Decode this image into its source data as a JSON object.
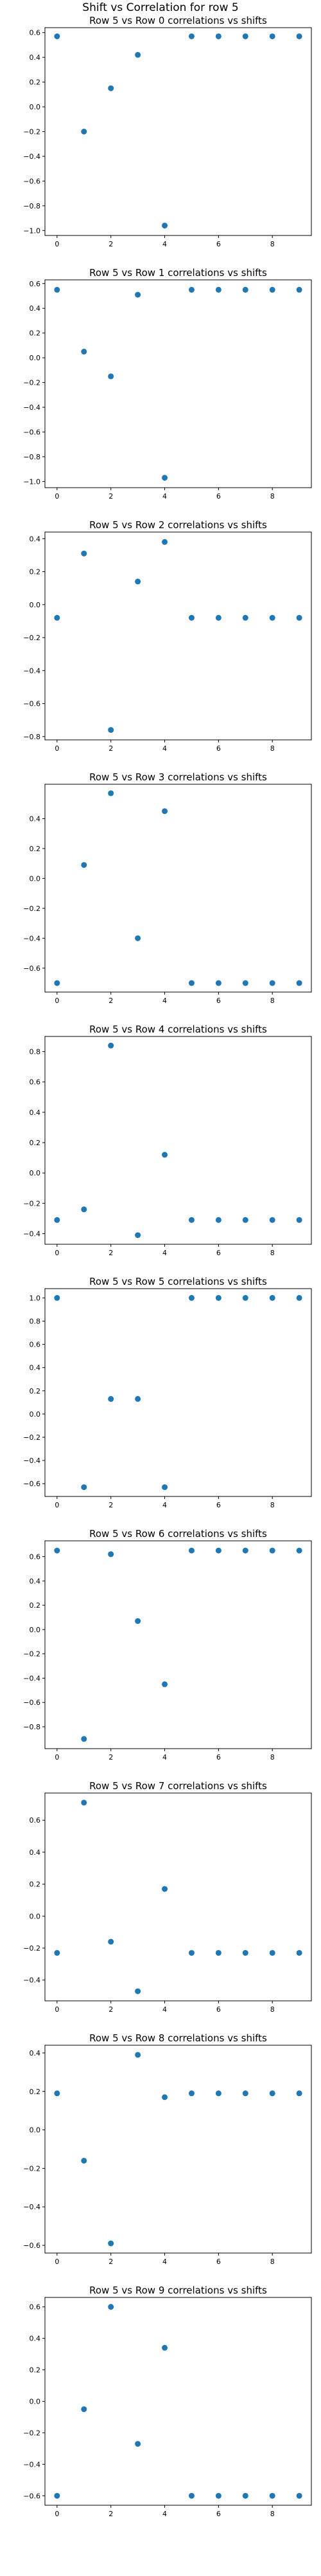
{
  "suptitle": "Shift vs Correlation for row 5",
  "chart_data": [
    {
      "type": "scatter",
      "title": "Row 5 vs Row 0 correlations vs shifts",
      "x": [
        0,
        1,
        2,
        3,
        4,
        5,
        6,
        7,
        8,
        9
      ],
      "y": [
        0.57,
        -0.2,
        0.15,
        0.42,
        -0.96,
        0.57,
        0.57,
        0.57,
        0.57,
        0.57
      ],
      "xlim": [
        -0.45,
        9.45
      ],
      "ylim": [
        -1.04,
        0.64
      ],
      "xticks": [
        0,
        2,
        4,
        6,
        8
      ],
      "yticks": [
        -1.0,
        -0.8,
        -0.6,
        -0.4,
        -0.2,
        0.0,
        0.2,
        0.4,
        0.6
      ],
      "xtick_labels": [
        "0",
        "2",
        "4",
        "6",
        "8"
      ],
      "ytick_labels": [
        "−1.0",
        "−0.8",
        "−0.6",
        "−0.4",
        "−0.2",
        "0.0",
        "0.2",
        "0.4",
        "0.6"
      ]
    },
    {
      "type": "scatter",
      "title": "Row 5 vs Row 1 correlations vs shifts",
      "x": [
        0,
        1,
        2,
        3,
        4,
        5,
        6,
        7,
        8,
        9
      ],
      "y": [
        0.55,
        0.05,
        -0.15,
        0.51,
        -0.97,
        0.55,
        0.55,
        0.55,
        0.55,
        0.55
      ],
      "xlim": [
        -0.45,
        9.45
      ],
      "ylim": [
        -1.05,
        0.63
      ],
      "xticks": [
        0,
        2,
        4,
        6,
        8
      ],
      "yticks": [
        -1.0,
        -0.8,
        -0.6,
        -0.4,
        -0.2,
        0.0,
        0.2,
        0.4,
        0.6
      ],
      "xtick_labels": [
        "0",
        "2",
        "4",
        "6",
        "8"
      ],
      "ytick_labels": [
        "−1.0",
        "−0.8",
        "−0.6",
        "−0.4",
        "−0.2",
        "0.0",
        "0.2",
        "0.4",
        "0.6"
      ]
    },
    {
      "type": "scatter",
      "title": "Row 5 vs Row 2 correlations vs shifts",
      "x": [
        0,
        1,
        2,
        3,
        4,
        5,
        6,
        7,
        8,
        9
      ],
      "y": [
        -0.08,
        0.31,
        -0.76,
        0.14,
        0.38,
        -0.08,
        -0.08,
        -0.08,
        -0.08,
        -0.08
      ],
      "xlim": [
        -0.45,
        9.45
      ],
      "ylim": [
        -0.82,
        0.44
      ],
      "xticks": [
        0,
        2,
        4,
        6,
        8
      ],
      "yticks": [
        -0.8,
        -0.6,
        -0.4,
        -0.2,
        0.0,
        0.2,
        0.4
      ],
      "xtick_labels": [
        "0",
        "2",
        "4",
        "6",
        "8"
      ],
      "ytick_labels": [
        "−0.8",
        "−0.6",
        "−0.4",
        "−0.2",
        "0.0",
        "0.2",
        "0.4"
      ]
    },
    {
      "type": "scatter",
      "title": "Row 5 vs Row 3 correlations vs shifts",
      "x": [
        0,
        1,
        2,
        3,
        4,
        5,
        6,
        7,
        8,
        9
      ],
      "y": [
        -0.7,
        0.09,
        0.57,
        -0.4,
        0.45,
        -0.7,
        -0.7,
        -0.7,
        -0.7,
        -0.7
      ],
      "xlim": [
        -0.45,
        9.45
      ],
      "ylim": [
        -0.76,
        0.63
      ],
      "xticks": [
        0,
        2,
        4,
        6,
        8
      ],
      "yticks": [
        -0.6,
        -0.4,
        -0.2,
        0.0,
        0.2,
        0.4
      ],
      "xtick_labels": [
        "0",
        "2",
        "4",
        "6",
        "8"
      ],
      "ytick_labels": [
        "−0.6",
        "−0.4",
        "−0.2",
        "0.0",
        "0.2",
        "0.4"
      ]
    },
    {
      "type": "scatter",
      "title": "Row 5 vs Row 4 correlations vs shifts",
      "x": [
        0,
        1,
        2,
        3,
        4,
        5,
        6,
        7,
        8,
        9
      ],
      "y": [
        -0.31,
        -0.24,
        0.84,
        -0.41,
        0.12,
        -0.31,
        -0.31,
        -0.31,
        -0.31,
        -0.31
      ],
      "xlim": [
        -0.45,
        9.45
      ],
      "ylim": [
        -0.47,
        0.9
      ],
      "xticks": [
        0,
        2,
        4,
        6,
        8
      ],
      "yticks": [
        -0.4,
        -0.2,
        0.0,
        0.2,
        0.4,
        0.6,
        0.8
      ],
      "xtick_labels": [
        "0",
        "2",
        "4",
        "6",
        "8"
      ],
      "ytick_labels": [
        "−0.4",
        "−0.2",
        "0.0",
        "0.2",
        "0.4",
        "0.6",
        "0.8"
      ]
    },
    {
      "type": "scatter",
      "title": "Row 5 vs Row 5 correlations vs shifts",
      "x": [
        0,
        1,
        2,
        3,
        4,
        5,
        6,
        7,
        8,
        9
      ],
      "y": [
        1.0,
        -0.63,
        0.13,
        0.13,
        -0.63,
        1.0,
        1.0,
        1.0,
        1.0,
        1.0
      ],
      "xlim": [
        -0.45,
        9.45
      ],
      "ylim": [
        -0.71,
        1.08
      ],
      "xticks": [
        0,
        2,
        4,
        6,
        8
      ],
      "yticks": [
        -0.6,
        -0.4,
        -0.2,
        0.0,
        0.2,
        0.4,
        0.6,
        0.8,
        1.0
      ],
      "xtick_labels": [
        "0",
        "2",
        "4",
        "6",
        "8"
      ],
      "ytick_labels": [
        "−0.6",
        "−0.4",
        "−0.2",
        "0.0",
        "0.2",
        "0.4",
        "0.6",
        "0.8",
        "1.0"
      ]
    },
    {
      "type": "scatter",
      "title": "Row 5 vs Row 6 correlations vs shifts",
      "x": [
        0,
        1,
        2,
        3,
        4,
        5,
        6,
        7,
        8,
        9
      ],
      "y": [
        0.65,
        -0.9,
        0.62,
        0.07,
        -0.45,
        0.65,
        0.65,
        0.65,
        0.65,
        0.65
      ],
      "xlim": [
        -0.45,
        9.45
      ],
      "ylim": [
        -0.98,
        0.73
      ],
      "xticks": [
        0,
        2,
        4,
        6,
        8
      ],
      "yticks": [
        -0.8,
        -0.6,
        -0.4,
        -0.2,
        0.0,
        0.2,
        0.4,
        0.6
      ],
      "xtick_labels": [
        "0",
        "2",
        "4",
        "6",
        "8"
      ],
      "ytick_labels": [
        "−0.8",
        "−0.6",
        "−0.4",
        "−0.2",
        "0.0",
        "0.2",
        "0.4",
        "0.6"
      ]
    },
    {
      "type": "scatter",
      "title": "Row 5 vs Row 7 correlations vs shifts",
      "x": [
        0,
        1,
        2,
        3,
        4,
        5,
        6,
        7,
        8,
        9
      ],
      "y": [
        -0.23,
        0.71,
        -0.16,
        -0.47,
        0.17,
        -0.23,
        -0.23,
        -0.23,
        -0.23,
        -0.23
      ],
      "xlim": [
        -0.45,
        9.45
      ],
      "ylim": [
        -0.53,
        0.77
      ],
      "xticks": [
        0,
        2,
        4,
        6,
        8
      ],
      "yticks": [
        -0.4,
        -0.2,
        0.0,
        0.2,
        0.4,
        0.6
      ],
      "xtick_labels": [
        "0",
        "2",
        "4",
        "6",
        "8"
      ],
      "ytick_labels": [
        "−0.4",
        "−0.2",
        "0.0",
        "0.2",
        "0.4",
        "0.6"
      ]
    },
    {
      "type": "scatter",
      "title": "Row 5 vs Row 8 correlations vs shifts",
      "x": [
        0,
        1,
        2,
        3,
        4,
        5,
        6,
        7,
        8,
        9
      ],
      "y": [
        0.19,
        -0.16,
        -0.59,
        0.39,
        0.17,
        0.19,
        0.19,
        0.19,
        0.19,
        0.19
      ],
      "xlim": [
        -0.45,
        9.45
      ],
      "ylim": [
        -0.64,
        0.44
      ],
      "xticks": [
        0,
        2,
        4,
        6,
        8
      ],
      "yticks": [
        -0.6,
        -0.4,
        -0.2,
        0.0,
        0.2,
        0.4
      ],
      "xtick_labels": [
        "0",
        "2",
        "4",
        "6",
        "8"
      ],
      "ytick_labels": [
        "−0.6",
        "−0.4",
        "−0.2",
        "0.0",
        "0.2",
        "0.4"
      ]
    },
    {
      "type": "scatter",
      "title": "Row 5 vs Row 9 correlations vs shifts",
      "x": [
        0,
        1,
        2,
        3,
        4,
        5,
        6,
        7,
        8,
        9
      ],
      "y": [
        -0.6,
        -0.05,
        0.6,
        -0.27,
        0.34,
        -0.6,
        -0.6,
        -0.6,
        -0.6,
        -0.6
      ],
      "xlim": [
        -0.45,
        9.45
      ],
      "ylim": [
        -0.66,
        0.66
      ],
      "xticks": [
        0,
        2,
        4,
        6,
        8
      ],
      "yticks": [
        -0.6,
        -0.4,
        -0.2,
        0.0,
        0.2,
        0.4,
        0.6
      ],
      "xtick_labels": [
        "0",
        "2",
        "4",
        "6",
        "8"
      ],
      "ytick_labels": [
        "−0.6",
        "−0.4",
        "−0.2",
        "0.0",
        "0.2",
        "0.4",
        "0.6"
      ]
    }
  ],
  "colors": {
    "marker": "#1f77b4"
  }
}
